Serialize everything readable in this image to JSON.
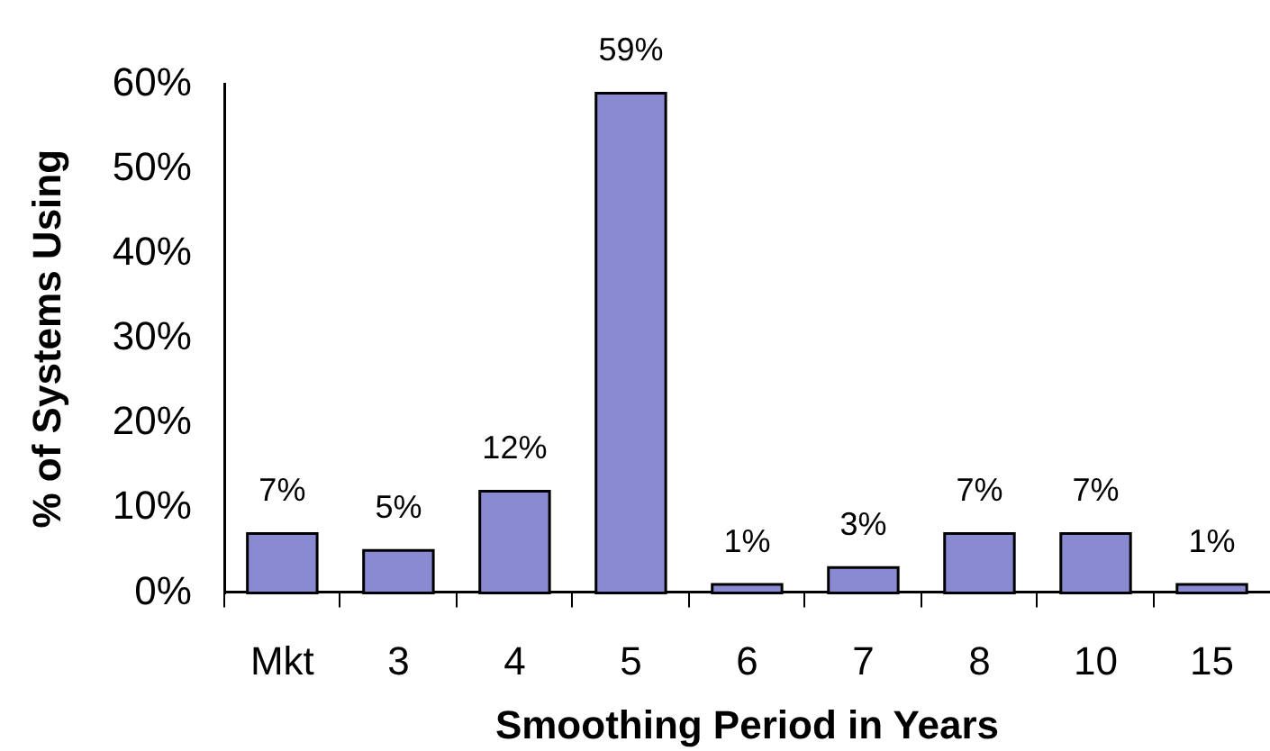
{
  "chart_data": {
    "type": "bar",
    "xlabel": "Smoothing Period in Years",
    "ylabel": "% of Systems Using",
    "categories": [
      "Mkt",
      "3",
      "4",
      "5",
      "6",
      "7",
      "8",
      "10",
      "15"
    ],
    "values": [
      7,
      5,
      12,
      59,
      1,
      3,
      7,
      7,
      1
    ],
    "value_labels": [
      "7%",
      "5%",
      "12%",
      "59%",
      "1%",
      "3%",
      "7%",
      "7%",
      "1%"
    ],
    "color": "#8a8ad2",
    "ylim": [
      0,
      60
    ],
    "yticks": [
      {
        "value": 0,
        "label": "0%"
      },
      {
        "value": 10,
        "label": "10%"
      },
      {
        "value": 20,
        "label": "20%"
      },
      {
        "value": 30,
        "label": "30%"
      },
      {
        "value": 40,
        "label": "40%"
      },
      {
        "value": 50,
        "label": "50%"
      },
      {
        "value": 60,
        "label": "60%"
      }
    ]
  }
}
